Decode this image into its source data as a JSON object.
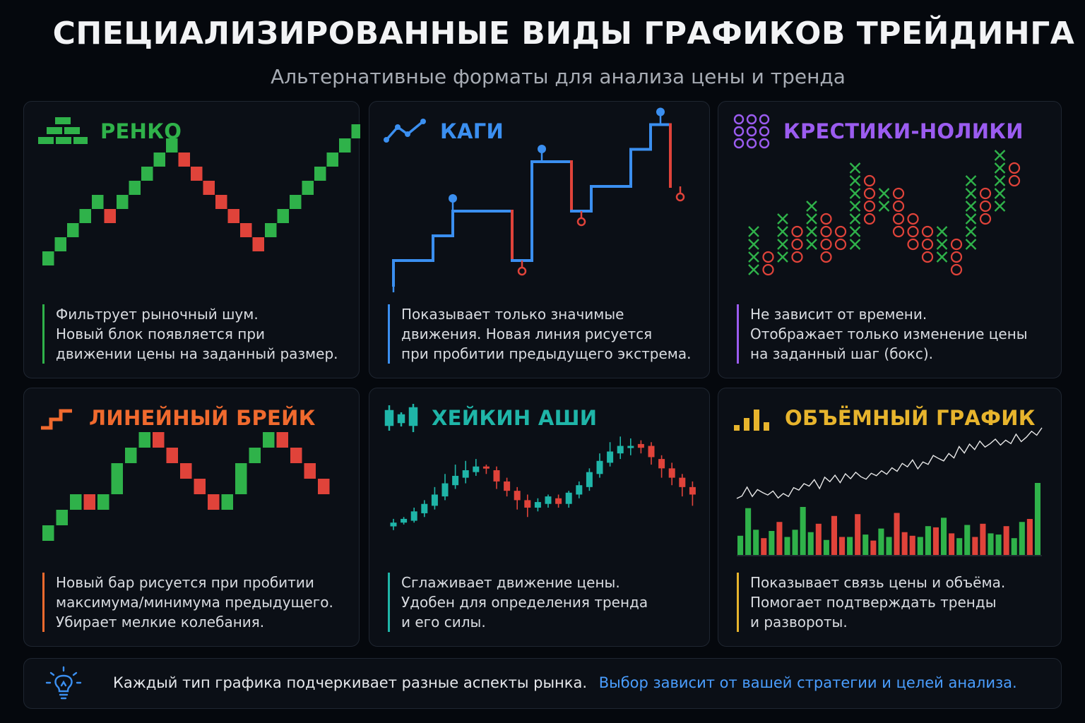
{
  "header": {
    "title": "СПЕЦИАЛИЗИРОВАННЫЕ ВИДЫ ГРАФИКОВ ТРЕЙДИНГА",
    "subtitle": "Альтернативные форматы для анализа цены и тренда"
  },
  "colors": {
    "up_green": "#2fb24a",
    "down_red": "#e0433a",
    "renko_accent": "#2fb24a",
    "kagi_accent": "#3b8ff0",
    "pnf_accent": "#9b5cf0",
    "linebreak_accent": "#f06a2e",
    "heikin_accent": "#1fb5a8",
    "volume_accent": "#e7b42d",
    "footer_link": "#4a9eff"
  },
  "cards": [
    {
      "id": "renko",
      "icon": "bricks-icon",
      "title": "РЕНКО",
      "desc": [
        "Фильтрует рыночный шум.",
        "Новый блок появляется при",
        "движении цены на заданный размер."
      ]
    },
    {
      "id": "kagi",
      "icon": "kagi-line-icon",
      "title": "КАГИ",
      "desc": [
        "Показывает только значимые",
        "движения. Новая линия рисуется",
        "при пробитии предыдущего экстрема."
      ]
    },
    {
      "id": "pnf",
      "icon": "circles-grid-icon",
      "title": "КРЕСТИКИ-НОЛИКИ",
      "desc": [
        "Не зависит от времени.",
        "Отображает только изменение цены",
        "на заданный шаг (бокс)."
      ]
    },
    {
      "id": "linebreak",
      "icon": "steps-icon",
      "title": "ЛИНЕЙНЫЙ БРЕЙК",
      "desc": [
        "Новый бар рисуется при пробитии",
        "максимума/минимума предыдущего.",
        "Убирает мелкие колебания."
      ]
    },
    {
      "id": "heikin",
      "icon": "candles-icon",
      "title": "ХЕЙКИН АШИ",
      "desc": [
        "Сглаживает движение цены.",
        "Удобен для определения тренда",
        "и его силы."
      ]
    },
    {
      "id": "volume",
      "icon": "volume-bars-icon",
      "title": "ОБЪЁМНЫЙ ГРАФИК",
      "desc": [
        "Показывает связь цены и объёма.",
        "Помогает подтверждать тренды",
        "и развороты."
      ]
    }
  ],
  "footer": {
    "icon": "lightbulb-icon",
    "text": "Каждый тип графика подчеркивает разные аспекты рынка.",
    "highlight": "Выбор зависит от вашей стратегии и целей анализа."
  },
  "chart_data": [
    {
      "type": "renko",
      "bricks": [
        {
          "level": 0,
          "dir": "up"
        },
        {
          "level": 1,
          "dir": "up"
        },
        {
          "level": 2,
          "dir": "up"
        },
        {
          "level": 3,
          "dir": "up"
        },
        {
          "level": 4,
          "dir": "up"
        },
        {
          "level": 3,
          "dir": "down"
        },
        {
          "level": 4,
          "dir": "up"
        },
        {
          "level": 5,
          "dir": "up"
        },
        {
          "level": 6,
          "dir": "up"
        },
        {
          "level": 7,
          "dir": "up"
        },
        {
          "level": 8,
          "dir": "up"
        },
        {
          "level": 7,
          "dir": "down"
        },
        {
          "level": 6,
          "dir": "down"
        },
        {
          "level": 5,
          "dir": "down"
        },
        {
          "level": 4,
          "dir": "down"
        },
        {
          "level": 3,
          "dir": "down"
        },
        {
          "level": 2,
          "dir": "down"
        },
        {
          "level": 1,
          "dir": "down"
        },
        {
          "level": 2,
          "dir": "up"
        },
        {
          "level": 3,
          "dir": "up"
        },
        {
          "level": 4,
          "dir": "up"
        },
        {
          "level": 5,
          "dir": "up"
        },
        {
          "level": 6,
          "dir": "up"
        },
        {
          "level": 7,
          "dir": "up"
        },
        {
          "level": 8,
          "dir": "up"
        },
        {
          "level": 9,
          "dir": "up"
        }
      ]
    },
    {
      "type": "kagi",
      "points": [
        {
          "x": 0,
          "y": 0
        },
        {
          "x": 0,
          "y": 1
        },
        {
          "x": 2,
          "y": 1
        },
        {
          "x": 2,
          "y": 2
        },
        {
          "x": 3,
          "y": 2
        },
        {
          "x": 3,
          "y": 3
        },
        {
          "x": 6,
          "y": 3
        },
        {
          "x": 6,
          "y": 1
        },
        {
          "x": 7,
          "y": 1
        },
        {
          "x": 7,
          "y": 5
        },
        {
          "x": 9,
          "y": 5
        },
        {
          "x": 9,
          "y": 3
        },
        {
          "x": 10,
          "y": 3
        },
        {
          "x": 10,
          "y": 4
        },
        {
          "x": 12,
          "y": 4
        },
        {
          "x": 12,
          "y": 5.5
        },
        {
          "x": 13,
          "y": 5.5
        },
        {
          "x": 13,
          "y": 6.5
        },
        {
          "x": 14,
          "y": 6.5
        },
        {
          "x": 14,
          "y": 4
        }
      ],
      "extremes": [
        {
          "x": 0,
          "y": 0,
          "kind": "low"
        },
        {
          "x": 3,
          "y": 3,
          "kind": "high"
        },
        {
          "x": 6.5,
          "y": 1,
          "kind": "low"
        },
        {
          "x": 7.5,
          "y": 5,
          "kind": "high"
        },
        {
          "x": 9.5,
          "y": 3,
          "kind": "low"
        },
        {
          "x": 13.5,
          "y": 6.5,
          "kind": "high"
        },
        {
          "x": 14.5,
          "y": 4,
          "kind": "low"
        }
      ]
    },
    {
      "type": "point-and-figure",
      "columns": [
        {
          "kind": "X",
          "from": 0,
          "to": 3
        },
        {
          "kind": "O",
          "from": 0,
          "to": 1
        },
        {
          "kind": "X",
          "from": 1,
          "to": 4
        },
        {
          "kind": "O",
          "from": 1,
          "to": 3
        },
        {
          "kind": "X",
          "from": 2,
          "to": 5
        },
        {
          "kind": "O",
          "from": 1,
          "to": 4
        },
        {
          "kind": "O",
          "from": 2,
          "to": 3
        },
        {
          "kind": "X",
          "from": 2,
          "to": 8
        },
        {
          "kind": "O",
          "from": 4,
          "to": 7
        },
        {
          "kind": "X",
          "from": 5,
          "to": 6
        },
        {
          "kind": "O",
          "from": 3,
          "to": 6
        },
        {
          "kind": "O",
          "from": 2,
          "to": 4
        },
        {
          "kind": "O",
          "from": 1,
          "to": 3
        },
        {
          "kind": "X",
          "from": 1,
          "to": 3
        },
        {
          "kind": "O",
          "from": 0,
          "to": 2
        },
        {
          "kind": "X",
          "from": 2,
          "to": 7
        },
        {
          "kind": "O",
          "from": 4,
          "to": 6
        },
        {
          "kind": "X",
          "from": 5,
          "to": 9
        },
        {
          "kind": "O",
          "from": 7,
          "to": 8
        }
      ]
    },
    {
      "type": "line-break",
      "bars": [
        {
          "open": 0,
          "close": 1
        },
        {
          "open": 1,
          "close": 2
        },
        {
          "open": 2,
          "close": 3
        },
        {
          "open": 3,
          "close": 2
        },
        {
          "open": 2,
          "close": 3
        },
        {
          "open": 3,
          "close": 5
        },
        {
          "open": 5,
          "close": 6
        },
        {
          "open": 6,
          "close": 7
        },
        {
          "open": 7,
          "close": 6
        },
        {
          "open": 6,
          "close": 5
        },
        {
          "open": 5,
          "close": 4
        },
        {
          "open": 4,
          "close": 3
        },
        {
          "open": 3,
          "close": 2
        },
        {
          "open": 2,
          "close": 3
        },
        {
          "open": 3,
          "close": 5
        },
        {
          "open": 5,
          "close": 6
        },
        {
          "open": 6,
          "close": 7
        },
        {
          "open": 7,
          "close": 6
        },
        {
          "open": 6,
          "close": 5
        },
        {
          "open": 5,
          "close": 4
        },
        {
          "open": 4,
          "close": 3
        }
      ]
    },
    {
      "type": "heikin-ashi",
      "candles": [
        {
          "o": 10,
          "c": 12,
          "h": 14,
          "l": 8
        },
        {
          "o": 12,
          "c": 14,
          "h": 15,
          "l": 11
        },
        {
          "o": 13,
          "c": 18,
          "h": 20,
          "l": 12
        },
        {
          "o": 17,
          "c": 22,
          "h": 24,
          "l": 15
        },
        {
          "o": 21,
          "c": 27,
          "h": 31,
          "l": 19
        },
        {
          "o": 26,
          "c": 33,
          "h": 38,
          "l": 24
        },
        {
          "o": 32,
          "c": 37,
          "h": 43,
          "l": 30
        },
        {
          "o": 36,
          "c": 40,
          "h": 45,
          "l": 33
        },
        {
          "o": 39,
          "c": 42,
          "h": 46,
          "l": 37
        },
        {
          "o": 42,
          "c": 41,
          "h": 43,
          "l": 38
        },
        {
          "o": 40,
          "c": 34,
          "h": 42,
          "l": 30
        },
        {
          "o": 34,
          "c": 29,
          "h": 36,
          "l": 26
        },
        {
          "o": 29,
          "c": 24,
          "h": 31,
          "l": 19
        },
        {
          "o": 24,
          "c": 20,
          "h": 27,
          "l": 15
        },
        {
          "o": 20,
          "c": 23,
          "h": 25,
          "l": 18
        },
        {
          "o": 22,
          "c": 26,
          "h": 27,
          "l": 20
        },
        {
          "o": 25,
          "c": 22,
          "h": 27,
          "l": 20
        },
        {
          "o": 22,
          "c": 28,
          "h": 29,
          "l": 20
        },
        {
          "o": 27,
          "c": 32,
          "h": 34,
          "l": 25
        },
        {
          "o": 31,
          "c": 39,
          "h": 41,
          "l": 29
        },
        {
          "o": 38,
          "c": 45,
          "h": 49,
          "l": 36
        },
        {
          "o": 44,
          "c": 50,
          "h": 55,
          "l": 42
        },
        {
          "o": 49,
          "c": 53,
          "h": 58,
          "l": 46
        },
        {
          "o": 52,
          "c": 53,
          "h": 57,
          "l": 48
        },
        {
          "o": 54,
          "c": 52,
          "h": 56,
          "l": 49
        },
        {
          "o": 53,
          "c": 47,
          "h": 55,
          "l": 43
        },
        {
          "o": 46,
          "c": 41,
          "h": 48,
          "l": 36
        },
        {
          "o": 41,
          "c": 36,
          "h": 44,
          "l": 32
        },
        {
          "o": 36,
          "c": 31,
          "h": 38,
          "l": 26
        },
        {
          "o": 31,
          "c": 27,
          "h": 34,
          "l": 21
        }
      ]
    },
    {
      "type": "volume",
      "price": [
        40,
        45,
        63,
        44,
        58,
        52,
        47,
        55,
        41,
        50,
        44,
        62,
        57,
        70,
        65,
        78,
        60,
        83,
        74,
        87,
        72,
        90,
        80,
        93,
        84,
        79,
        91,
        86,
        96,
        89,
        102,
        95,
        111,
        104,
        118,
        100,
        114,
        109,
        127,
        121,
        116,
        131,
        122,
        145,
        132,
        150,
        139,
        156,
        144,
        151,
        160,
        148,
        158,
        151,
        170,
        155,
        164,
        176,
        168,
        183
      ],
      "volume": [
        0.32,
        0.78,
        0.42,
        0.28,
        0.4,
        0.55,
        0.3,
        0.42,
        0.8,
        0.38,
        0.52,
        0.25,
        0.65,
        0.3,
        0.3,
        0.68,
        0.34,
        0.24,
        0.44,
        0.3,
        0.7,
        0.38,
        0.32,
        0.3,
        0.48,
        0.46,
        0.62,
        0.36,
        0.28,
        0.5,
        0.3,
        0.52,
        0.36,
        0.34,
        0.48,
        0.28,
        0.55,
        0.6,
        1.2
      ],
      "volume_dir": [
        "up",
        "up",
        "up",
        "down",
        "up",
        "down",
        "up",
        "up",
        "up",
        "up",
        "down",
        "up",
        "down",
        "down",
        "up",
        "down",
        "up",
        "down",
        "up",
        "up",
        "down",
        "down",
        "down",
        "up",
        "up",
        "down",
        "up",
        "down",
        "up",
        "up",
        "down",
        "down",
        "up",
        "up",
        "down",
        "up",
        "up",
        "down",
        "up"
      ]
    }
  ]
}
